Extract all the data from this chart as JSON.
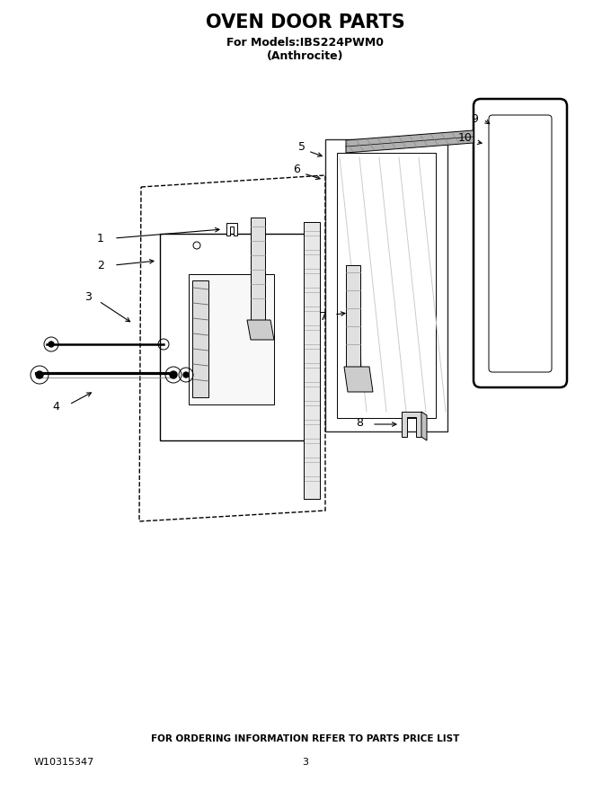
{
  "title": "OVEN DOOR PARTS",
  "subtitle1": "For Models:IBS224PWM0",
  "subtitle2": "(Anthrocite)",
  "footer_left": "W10315347",
  "footer_center": "3",
  "footer_order": "FOR ORDERING INFORMATION REFER TO PARTS PRICE LIST",
  "bg_color": "#ffffff",
  "line_color": "#000000"
}
